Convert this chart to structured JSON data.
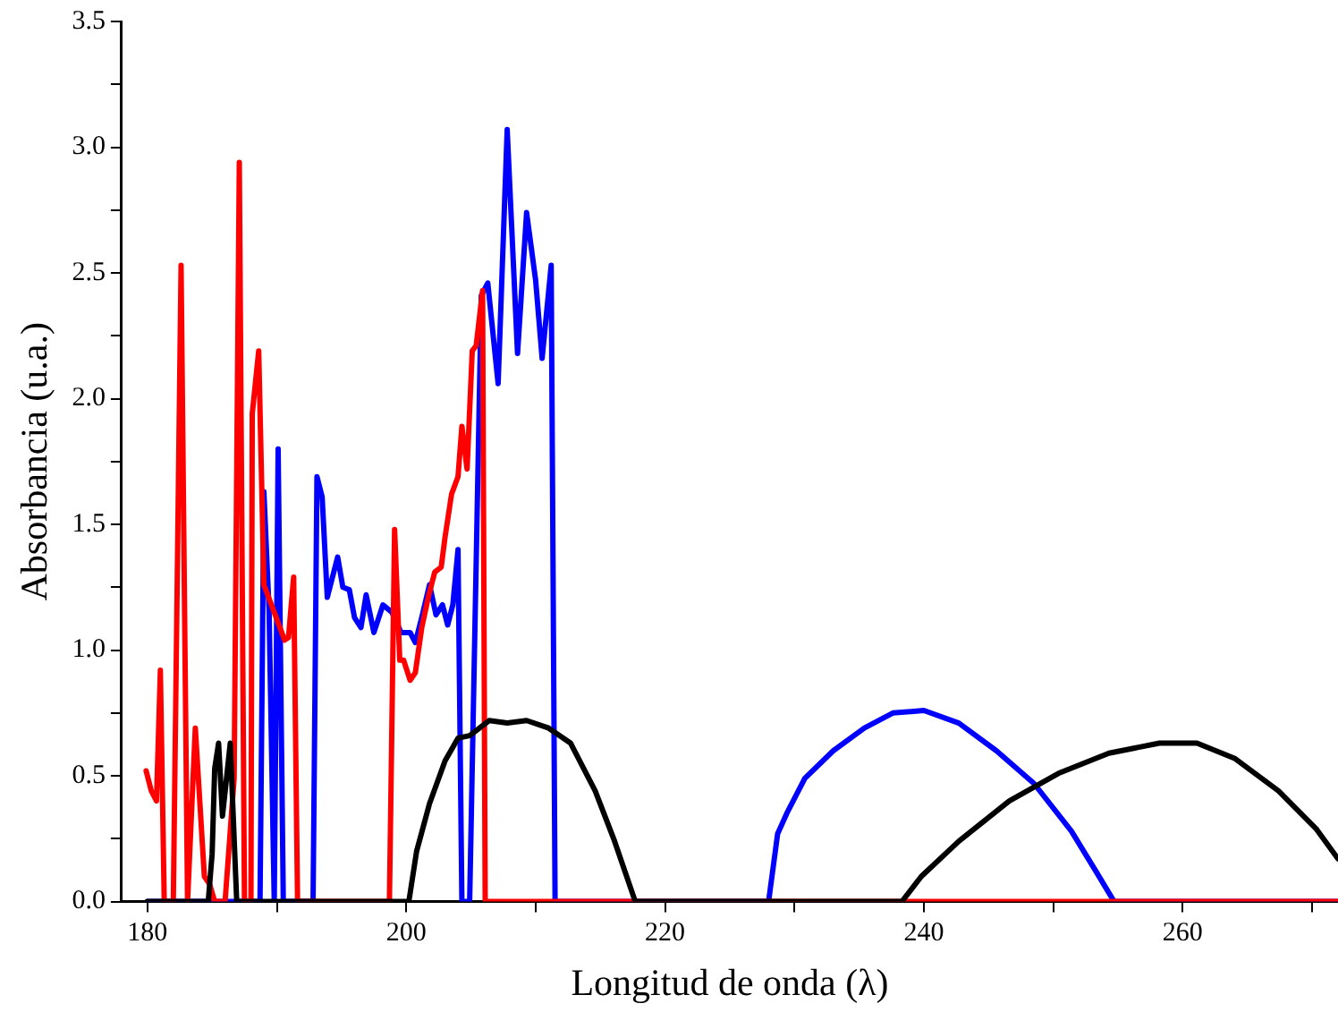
{
  "chart_data": {
    "type": "line",
    "xlabel": "Longitud de onda (λ)",
    "ylabel": "Absorbancia (u.a.)",
    "xlim": [
      178,
      272
    ],
    "ylim": [
      0,
      3.5
    ],
    "xticks": [
      180,
      {
        "value": 190,
        "label": null
      },
      200,
      {
        "value": 210,
        "label": null
      },
      220,
      {
        "value": 230,
        "label": null
      },
      240,
      {
        "value": 250,
        "label": null
      },
      260,
      {
        "value": 270,
        "label": null
      }
    ],
    "yticks": [
      {
        "value": 0,
        "label": "0.0"
      },
      {
        "value": 0.25,
        "label": null
      },
      0.5,
      {
        "value": 0.75,
        "label": null
      },
      {
        "value": 1,
        "label": "1.0"
      },
      {
        "value": 1.25,
        "label": null
      },
      1.5,
      {
        "value": 1.75,
        "label": null
      },
      {
        "value": 2,
        "label": "2.0"
      },
      {
        "value": 2.25,
        "label": null
      },
      2.5,
      {
        "value": 2.75,
        "label": null
      },
      {
        "value": 3,
        "label": "3.0"
      },
      {
        "value": 3.25,
        "label": null
      },
      3.5
    ],
    "grid": false,
    "legend": false,
    "marker": "none",
    "line_style": "solid",
    "series": [
      {
        "color": "#000000",
        "x": [
          180,
          184.7,
          185.0,
          185.2,
          185.5,
          185.8,
          186.4,
          186.9,
          200.2,
          200.8,
          201.8,
          203.0,
          204.0,
          204.9,
          206.4,
          207.8,
          209.3,
          211.0,
          212.7,
          214.6,
          216.1,
          217.7,
          238.3,
          239.8,
          242.7,
          246.6,
          250.4,
          254.3,
          258.2,
          261.1,
          264.0,
          267.4,
          270.3,
          272.0
        ],
        "values": [
          0,
          0,
          0.19,
          0.53,
          0.63,
          0.34,
          0.63,
          0,
          0,
          0.2,
          0.39,
          0.56,
          0.65,
          0.66,
          0.72,
          0.71,
          0.72,
          0.69,
          0.63,
          0.44,
          0.24,
          0,
          0,
          0.1,
          0.24,
          0.4,
          0.51,
          0.59,
          0.63,
          0.63,
          0.57,
          0.44,
          0.29,
          0.17
        ]
      },
      {
        "color": "#ff0000",
        "x": [
          179.9,
          180.3,
          180.7,
          181.0,
          181.3,
          182.0,
          182.6,
          183.1,
          183.7,
          184.4,
          184.8,
          185.2,
          186.0,
          186.7,
          187.1,
          187.5,
          188.0,
          188.1,
          188.6,
          189.0,
          190.6,
          190.9,
          191.3,
          191.6,
          198.7,
          199.1,
          199.5,
          199.8,
          200.3,
          200.7,
          201.2,
          201.7,
          202.2,
          202.7,
          203.0,
          203.5,
          204.0,
          204.3,
          204.7,
          205.1,
          205.4,
          205.9,
          206.1,
          272
        ],
        "values": [
          0.52,
          0.44,
          0.4,
          0.92,
          0,
          0,
          2.53,
          0,
          0.69,
          0.1,
          0.07,
          0,
          0,
          0.49,
          2.94,
          0,
          0,
          1.94,
          2.19,
          1.26,
          1.04,
          1.05,
          1.29,
          0,
          0,
          1.48,
          0.96,
          0.96,
          0.88,
          0.91,
          1.09,
          1.21,
          1.31,
          1.33,
          1.45,
          1.62,
          1.69,
          1.89,
          1.72,
          2.19,
          2.21,
          2.43,
          0,
          0
        ]
      },
      {
        "color": "#0000ff",
        "x": [
          180,
          188.7,
          189.0,
          189.4,
          189.8,
          190.1,
          190.5,
          192.8,
          193.1,
          193.5,
          193.9,
          194.3,
          194.7,
          195.1,
          195.6,
          196.0,
          196.5,
          196.9,
          197.5,
          198.2,
          198.9,
          199.6,
          200.3,
          200.7,
          201.2,
          201.8,
          202.3,
          202.8,
          203.2,
          203.6,
          204.0,
          204.3,
          204.9,
          205.8,
          206.3,
          207.1,
          207.8,
          208.6,
          209.3,
          210.0,
          210.5,
          211.2,
          211.5,
          228.0,
          228.7,
          229.4,
          230.8,
          233.0,
          235.4,
          237.6,
          240.0,
          242.7,
          245.6,
          248.5,
          251.4,
          253.3,
          254.7,
          272
        ],
        "values": [
          0,
          0,
          1.63,
          1.16,
          0,
          1.8,
          0,
          0,
          1.69,
          1.61,
          1.21,
          1.29,
          1.37,
          1.25,
          1.24,
          1.13,
          1.09,
          1.22,
          1.07,
          1.18,
          1.15,
          1.07,
          1.07,
          1.03,
          1.13,
          1.26,
          1.14,
          1.18,
          1.1,
          1.18,
          1.4,
          0,
          0,
          2.41,
          2.46,
          2.06,
          3.07,
          2.18,
          2.74,
          2.47,
          2.16,
          2.53,
          0,
          0,
          0.27,
          0.35,
          0.49,
          0.6,
          0.69,
          0.75,
          0.76,
          0.71,
          0.6,
          0.47,
          0.28,
          0.12,
          0,
          0
        ]
      }
    ]
  }
}
